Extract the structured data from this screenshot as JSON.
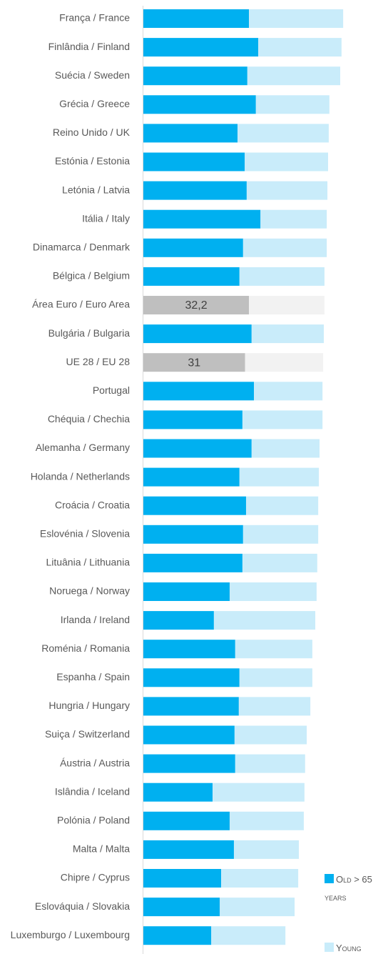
{
  "chart_data": {
    "type": "stacked_bar",
    "categories": [
      "França / France",
      "Finlândia / Finland",
      "Suécia / Sweden",
      "Grécia / Greece",
      "Reino Unido / UK",
      "Estónia / Estonia",
      "Letónia / Latvia",
      "Itália / Italy",
      "Dinamarca / Denmark",
      "Bélgica / Belgium",
      "Área Euro / Euro Area",
      "Bulgária / Bulgaria",
      "UE 28 / EU 28",
      "Portugal",
      "Chéquia / Chechia",
      "Alemanha / Germany",
      "Holanda / Netherlands",
      "Croácia / Croatia",
      "Eslovénia / Slovenia",
      "Lituânia / Lithuania",
      "Noruega / Norway",
      "Irlanda / Ireland",
      "Roménia / Romania",
      "Espanha / Spain",
      "Hungria / Hungary",
      "Suiça / Switzerland",
      "Áustria / Austria",
      "Islândia / Iceland",
      "Polónia / Poland",
      "Malta / Malta",
      "Chipre / Cyprus",
      "Eslováquia / Slovakia",
      "Luxemburgo / Luxembourg"
    ],
    "series": [
      {
        "name": "Old > 65 years",
        "color": "#00b0f0",
        "highlight_color": "#bfbfbf",
        "values": [
          32.2,
          35.0,
          31.7,
          34.3,
          28.7,
          30.9,
          31.5,
          35.7,
          30.4,
          29.3,
          32.2,
          33.0,
          31,
          33.7,
          30.2,
          33.0,
          29.3,
          31.3,
          30.4,
          30.2,
          26.3,
          21.5,
          28.0,
          29.3,
          29.1,
          27.8,
          28.0,
          21.1,
          26.3,
          27.6,
          23.7,
          23.3,
          20.7
        ],
        "value_labels": [
          null,
          null,
          null,
          null,
          null,
          null,
          null,
          null,
          null,
          null,
          "32,2",
          null,
          "31",
          null,
          null,
          null,
          null,
          null,
          null,
          null,
          null,
          null,
          null,
          null,
          null,
          null,
          null,
          null,
          null,
          null,
          null,
          null,
          null
        ]
      },
      {
        "name": "Young",
        "color": "#c9ecfa",
        "highlight_color": "#f2f2f2",
        "values": [
          28.7,
          25.4,
          28.3,
          22.4,
          27.8,
          25.4,
          24.6,
          20.2,
          25.5,
          25.9,
          23.0,
          22.0,
          23.8,
          20.9,
          24.4,
          20.7,
          24.2,
          22.0,
          22.9,
          22.8,
          26.5,
          30.9,
          23.5,
          22.2,
          21.8,
          22.0,
          21.3,
          28.0,
          22.6,
          19.8,
          23.5,
          22.8,
          22.6
        ]
      }
    ]
  }
}
